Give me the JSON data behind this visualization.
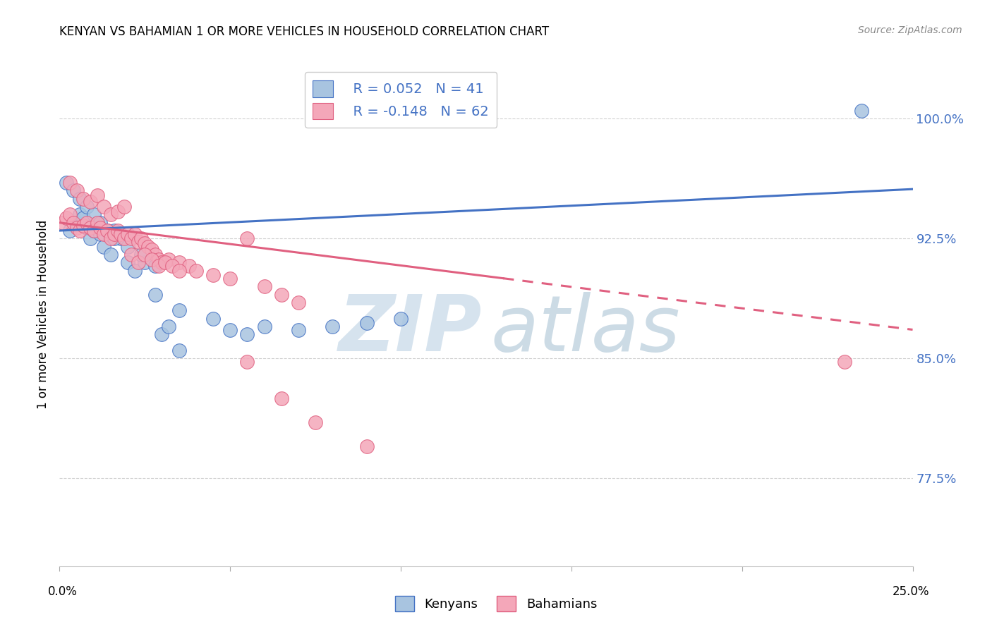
{
  "title": "KENYAN VS BAHAMIAN 1 OR MORE VEHICLES IN HOUSEHOLD CORRELATION CHART",
  "source": "Source: ZipAtlas.com",
  "ylabel": "1 or more Vehicles in Household",
  "xlim": [
    0.0,
    25.0
  ],
  "ylim": [
    72.0,
    103.5
  ],
  "yticks": [
    77.5,
    85.0,
    92.5,
    100.0
  ],
  "ytick_labels": [
    "77.5%",
    "85.0%",
    "92.5%",
    "100.0%"
  ],
  "legend_r_kenyan": "R = 0.052",
  "legend_n_kenyan": "N = 41",
  "legend_r_bahamian": "R = -0.148",
  "legend_n_bahamian": "N = 62",
  "kenyan_color": "#a8c4e0",
  "bahamian_color": "#f4a7b9",
  "trend_kenyan_color": "#4472c4",
  "trend_bahamian_color": "#e06080",
  "background_color": "#ffffff",
  "kenyan_x": [
    0.3,
    0.5,
    0.6,
    0.7,
    0.8,
    0.9,
    1.0,
    1.1,
    1.2,
    1.3,
    1.5,
    1.6,
    1.8,
    2.0,
    2.2,
    2.5,
    2.8,
    3.0,
    3.2,
    3.5,
    0.2,
    0.4,
    0.6,
    0.8,
    1.0,
    1.2,
    1.4,
    1.6,
    2.0,
    2.4,
    2.8,
    3.5,
    4.5,
    5.0,
    5.5,
    6.0,
    7.0,
    8.0,
    9.0,
    10.0,
    23.5
  ],
  "kenyan_y": [
    93.0,
    93.5,
    94.0,
    93.8,
    93.2,
    92.5,
    93.0,
    93.5,
    92.8,
    92.0,
    91.5,
    93.0,
    92.5,
    91.0,
    90.5,
    91.0,
    90.8,
    86.5,
    87.0,
    85.5,
    96.0,
    95.5,
    95.0,
    94.5,
    94.0,
    93.5,
    93.0,
    92.5,
    92.0,
    91.5,
    89.0,
    88.0,
    87.5,
    86.8,
    86.5,
    87.0,
    86.8,
    87.0,
    87.2,
    87.5,
    100.5
  ],
  "bahamian_x": [
    0.1,
    0.2,
    0.3,
    0.4,
    0.5,
    0.6,
    0.7,
    0.8,
    0.9,
    1.0,
    1.1,
    1.2,
    1.3,
    1.4,
    1.5,
    1.6,
    1.7,
    1.8,
    1.9,
    2.0,
    2.1,
    2.2,
    2.3,
    2.4,
    2.5,
    2.6,
    2.7,
    2.8,
    2.9,
    3.0,
    3.2,
    3.5,
    3.8,
    4.0,
    4.5,
    5.0,
    5.5,
    6.0,
    6.5,
    7.0,
    0.3,
    0.5,
    0.7,
    0.9,
    1.1,
    1.3,
    1.5,
    1.7,
    1.9,
    2.1,
    2.3,
    2.5,
    2.7,
    2.9,
    3.1,
    3.3,
    3.5,
    5.5,
    6.5,
    7.5,
    9.0,
    23.0
  ],
  "bahamian_y": [
    93.5,
    93.8,
    94.0,
    93.5,
    93.2,
    93.0,
    93.3,
    93.5,
    93.2,
    93.0,
    93.5,
    93.2,
    92.8,
    93.0,
    92.5,
    92.8,
    93.0,
    92.8,
    92.5,
    92.8,
    92.5,
    92.8,
    92.3,
    92.5,
    92.2,
    92.0,
    91.8,
    91.5,
    91.2,
    91.0,
    91.2,
    91.0,
    90.8,
    90.5,
    90.2,
    90.0,
    92.5,
    89.5,
    89.0,
    88.5,
    96.0,
    95.5,
    95.0,
    94.8,
    95.2,
    94.5,
    94.0,
    94.2,
    94.5,
    91.5,
    91.0,
    91.5,
    91.2,
    90.8,
    91.0,
    90.8,
    90.5,
    84.8,
    82.5,
    81.0,
    79.5,
    84.8
  ],
  "kenyan_trend_x0": 0.0,
  "kenyan_trend_x1": 25.0,
  "kenyan_trend_y0": 93.0,
  "kenyan_trend_y1": 95.6,
  "bahamian_trend_x0": 0.0,
  "bahamian_trend_x1": 25.0,
  "bahamian_trend_y0": 93.5,
  "bahamian_trend_y1": 86.8,
  "bahamian_solid_end_x": 13.0
}
